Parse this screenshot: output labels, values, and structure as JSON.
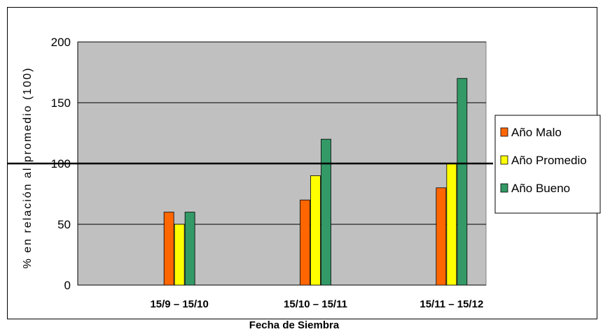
{
  "chart_data": {
    "type": "bar",
    "title": "",
    "xlabel": "Fecha de Siembra",
    "ylabel": "% en relación al promedio (100)",
    "ylim": [
      0,
      200
    ],
    "yticks": [
      0,
      50,
      100,
      150,
      200
    ],
    "reference_line": 100,
    "grid": true,
    "legend_position": "right",
    "background_color": "#C0C0C0",
    "categories": [
      "15/9 – 15/10",
      "15/10 – 15/11",
      "15/11 – 15/12"
    ],
    "series": [
      {
        "name": "Año Malo",
        "color": "#FF6600",
        "values": [
          60,
          70,
          80
        ]
      },
      {
        "name": "Año Promedio",
        "color": "#FFFF00",
        "values": [
          50,
          90,
          100
        ]
      },
      {
        "name": "Año Bueno",
        "color": "#339966",
        "values": [
          60,
          120,
          170
        ]
      }
    ]
  }
}
